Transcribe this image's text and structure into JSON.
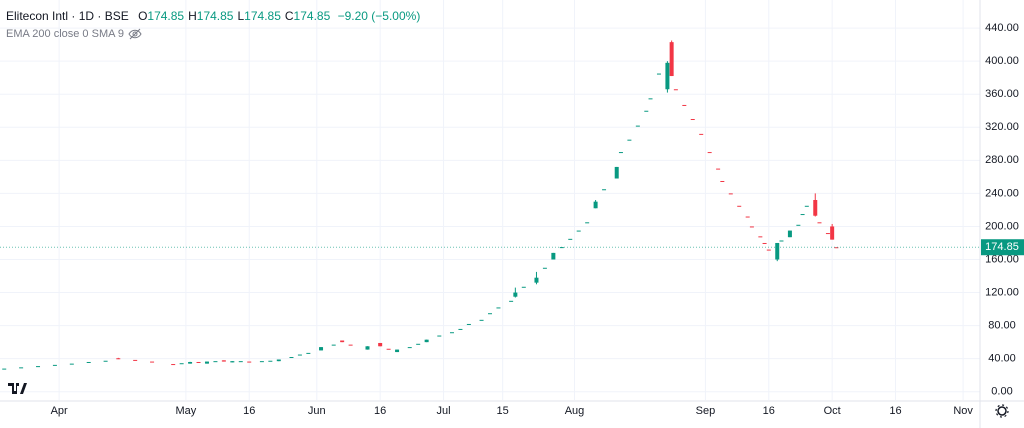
{
  "chart_data": {
    "type": "candlestick",
    "title": "Elitecon Intl · 1D · BSE",
    "ohlc_fields": [
      {
        "label": "O",
        "value": 174.85
      },
      {
        "label": "H",
        "value": 174.85
      },
      {
        "label": "L",
        "value": 174.85
      },
      {
        "label": "C",
        "value": 174.85
      }
    ],
    "change": "−9.20 (−5.00%)",
    "indicator": "EMA 200 close 0 SMA 9",
    "last_price": 174.85,
    "up_color": "#089981",
    "down_color": "#f23645",
    "x": [
      79,
      83,
      87,
      91,
      95,
      99,
      103,
      106,
      110,
      114,
      119,
      121,
      123,
      125,
      127,
      129,
      131,
      133,
      135,
      137,
      140,
      142,
      144,
      147,
      149,
      151,
      154,
      157,
      159,
      161,
      165,
      168,
      170,
      172,
      175,
      177,
      179,
      182,
      185,
      187,
      189,
      192,
      194,
      196,
      199,
      200,
      202,
      205,
      207,
      209,
      211,
      213,
      215,
      217,
      219,
      221,
      224,
      225,
      227,
      229,
      231,
      232,
      234,
      236,
      237,
      238,
      240,
      242,
      244,
      246,
      248,
      249,
      251,
      253,
      255,
      256,
      258,
      259,
      260,
      262,
      263,
      265,
      267,
      268,
      269,
      271,
      272,
      274,
      275,
      276
    ],
    "open": [
      28,
      29.5,
      31,
      32.5,
      34,
      36,
      37.5,
      40.5,
      38.5,
      36.5,
      33.5,
      34.5,
      34,
      36,
      34,
      37,
      38,
      35.5,
      37,
      36.5,
      37,
      37.5,
      37,
      42,
      45,
      47,
      50,
      57,
      62,
      57,
      51,
      59,
      52,
      48,
      54,
      58,
      60,
      68,
      72,
      76,
      82,
      87,
      95,
      102,
      110,
      115,
      127,
      132,
      150,
      160,
      175,
      185,
      195,
      205,
      222,
      245,
      258,
      290,
      305,
      322,
      340,
      355,
      385,
      366,
      423,
      366,
      347,
      330,
      312,
      290,
      270,
      255,
      240,
      225,
      212,
      200,
      188,
      180,
      172,
      160,
      183,
      187,
      202,
      215,
      225,
      232,
      205,
      192,
      200,
      174.85
    ],
    "high": [
      28,
      29.5,
      31,
      32.5,
      34,
      36,
      37.5,
      41,
      38.5,
      36.5,
      33.5,
      34.5,
      36.2,
      36,
      36.5,
      37,
      38,
      37,
      37,
      36.5,
      37,
      37.5,
      39,
      42,
      45,
      47,
      54,
      57,
      62,
      57,
      55,
      59,
      52,
      51,
      54,
      58,
      63,
      68,
      72,
      76,
      82,
      87,
      95,
      102,
      110,
      126,
      127,
      145,
      150,
      168,
      175,
      185,
      195,
      205,
      232,
      245,
      272,
      290,
      305,
      322,
      340,
      355,
      385,
      400,
      425,
      366,
      347,
      330,
      312,
      290,
      270,
      255,
      240,
      225,
      212,
      200,
      188,
      180,
      172,
      180,
      183,
      195,
      202,
      215,
      225,
      240,
      205,
      192,
      203,
      174.85
    ],
    "low": [
      28,
      29.5,
      31,
      32.5,
      34,
      36,
      37.5,
      39.5,
      38.5,
      36.5,
      33.5,
      34.5,
      34,
      35,
      34,
      37,
      36.5,
      35.5,
      37,
      36.5,
      37,
      37.5,
      37,
      42,
      45,
      47,
      50,
      57,
      60,
      57,
      51,
      55,
      52,
      48,
      54,
      58,
      60,
      68,
      72,
      76,
      82,
      87,
      95,
      102,
      110,
      114,
      127,
      130,
      150,
      160,
      175,
      185,
      195,
      205,
      222,
      245,
      258,
      290,
      305,
      322,
      340,
      355,
      385,
      362,
      382,
      366,
      347,
      330,
      312,
      290,
      270,
      255,
      240,
      225,
      212,
      200,
      188,
      180,
      172,
      158,
      183,
      187,
      202,
      215,
      225,
      212,
      205,
      192,
      184.05,
      174.85
    ],
    "close": [
      28,
      29.5,
      31,
      32.5,
      34,
      36,
      37.5,
      39.8,
      38.5,
      36.5,
      33.5,
      34.5,
      36,
      35,
      36.5,
      37,
      36.5,
      37,
      37,
      36.5,
      37,
      37.5,
      39,
      42,
      45,
      47,
      54,
      57,
      60,
      57,
      55,
      55,
      52,
      51,
      54,
      58,
      63,
      68,
      72,
      76,
      82,
      87,
      95,
      102,
      110,
      120,
      127,
      138,
      150,
      168,
      175,
      185,
      195,
      205,
      230,
      245,
      272,
      290,
      305,
      322,
      340,
      355,
      385,
      398,
      382,
      366,
      347,
      330,
      312,
      290,
      270,
      255,
      240,
      225,
      212,
      200,
      188,
      180,
      172,
      180,
      183,
      195,
      202,
      215,
      225,
      213,
      205,
      192,
      184.05,
      174.85
    ],
    "xlim": [
      78,
      310
    ],
    "xticks": [
      {
        "value": 92,
        "label": "Apr"
      },
      {
        "value": 122,
        "label": "May"
      },
      {
        "value": 137,
        "label": "16"
      },
      {
        "value": 153,
        "label": "Jun"
      },
      {
        "value": 168,
        "label": "16"
      },
      {
        "value": 183,
        "label": "Jul"
      },
      {
        "value": 197,
        "label": "15"
      },
      {
        "value": 214,
        "label": "Aug"
      },
      {
        "value": 245,
        "label": "Sep"
      },
      {
        "value": 260,
        "label": "16"
      },
      {
        "value": 275,
        "label": "Oct"
      },
      {
        "value": 290,
        "label": "16"
      },
      {
        "value": 306,
        "label": "Nov"
      }
    ],
    "ylim": [
      -10,
      474
    ],
    "yticks": [
      {
        "value": 0,
        "label": "0.00"
      },
      {
        "value": 40,
        "label": "40.00"
      },
      {
        "value": 80,
        "label": "80.00"
      },
      {
        "value": 120,
        "label": "120.00"
      },
      {
        "value": 160,
        "label": "160.00"
      },
      {
        "value": 200,
        "label": "200.00"
      },
      {
        "value": 240,
        "label": "240.00"
      },
      {
        "value": 280,
        "label": "280.00"
      },
      {
        "value": 320,
        "label": "320.00"
      },
      {
        "value": 360,
        "label": "360.00"
      },
      {
        "value": 400,
        "label": "400.00"
      },
      {
        "value": 440,
        "label": "440.00"
      }
    ],
    "grid": true
  }
}
